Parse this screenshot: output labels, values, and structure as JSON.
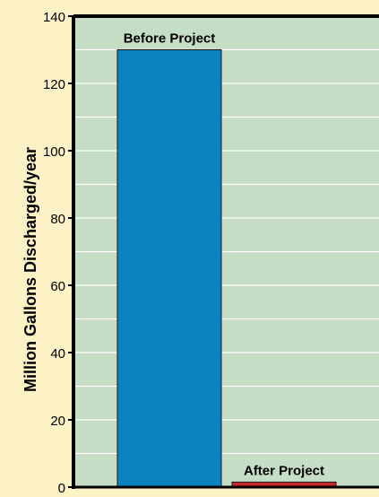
{
  "colors": {
    "page_background": "#fdf2c6",
    "plot_background": "#c5dcc5",
    "gridline": "#ffffff",
    "frame": "#000000",
    "before_bar": "#0a82bf",
    "after_bar": "#c8282d"
  },
  "chart_data": {
    "type": "bar",
    "categories": [
      "Before Project",
      "After Project"
    ],
    "values": [
      130,
      1.5
    ],
    "data_labels": [
      "Before Project",
      "After Project"
    ],
    "xlabel": "",
    "ylabel": "Million Gallons Discharged/year",
    "ylim": [
      0,
      140
    ],
    "yticks": [
      0,
      20,
      40,
      60,
      80,
      100,
      120,
      140
    ],
    "grid": true,
    "legend": "none"
  }
}
